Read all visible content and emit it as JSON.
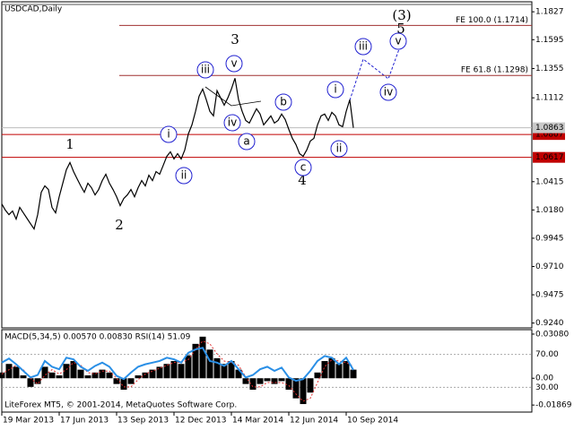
{
  "chart_data": [
    {
      "type": "line",
      "title": "USDCAD,Daily",
      "categories": [
        "19 Mar 2013",
        null,
        null,
        null,
        null,
        null,
        null,
        null,
        null,
        null,
        null,
        null,
        null,
        null,
        null,
        null,
        "17 Jun 2013",
        null,
        null,
        null,
        null,
        null,
        null,
        null,
        null,
        null,
        null,
        null,
        null,
        null,
        null,
        null,
        "13 Sep 2013",
        null,
        null,
        null,
        null,
        null,
        null,
        null,
        null,
        null,
        null,
        null,
        null,
        null,
        null,
        null,
        "12 Dec 2013",
        null,
        null,
        null,
        null,
        null,
        null,
        null,
        null,
        null,
        null,
        null,
        null,
        null,
        null,
        null,
        "14 Mar 2014",
        null,
        null,
        null,
        null,
        null,
        null,
        null,
        null,
        null,
        null,
        null,
        null,
        null,
        null,
        null,
        "12 Jun 2014",
        null,
        null,
        null,
        null,
        null,
        null,
        null,
        null,
        null,
        null,
        null,
        null,
        null,
        null,
        null,
        "10 Sep 2014",
        null,
        null
      ],
      "color": "#000000",
      "values": [
        1.023,
        1.0178,
        1.0141,
        1.0171,
        1.0104,
        1.0201,
        1.0156,
        1.0111,
        1.0066,
        1.0022,
        1.0141,
        1.0327,
        1.038,
        1.035,
        1.0201,
        1.0156,
        1.029,
        1.0402,
        1.0514,
        1.0574,
        1.0499,
        1.0439,
        1.038,
        1.0327,
        1.0402,
        1.0365,
        1.0305,
        1.035,
        1.0424,
        1.0477,
        1.0402,
        1.035,
        1.029,
        1.0216,
        1.0275,
        1.0305,
        1.035,
        1.029,
        1.0365,
        1.0424,
        1.038,
        1.0469,
        1.0424,
        1.0499,
        1.0477,
        1.0551,
        1.0626,
        1.0663,
        1.0604,
        1.0648,
        1.0604,
        1.0678,
        1.0812,
        1.0887,
        1.0999,
        1.1126,
        1.1185,
        1.1096,
        1.0999,
        1.0962,
        1.1171,
        1.1111,
        1.1051,
        1.1111,
        1.1185,
        1.1275,
        1.1096,
        1.0999,
        1.0924,
        1.0902,
        1.0962,
        1.1021,
        1.0977,
        1.0887,
        1.0924,
        1.0962,
        1.0902,
        1.0924,
        1.0977,
        1.0932,
        1.085,
        1.0775,
        1.0723,
        1.0648,
        1.0626,
        1.0678,
        1.0753,
        1.0775,
        1.0887,
        1.0962,
        1.0977,
        1.0924,
        1.0991,
        1.0962,
        1.0887,
        1.0872,
        1.0999,
        1.1096,
        1.0863
      ],
      "ylim": [
        0.92,
        1.191
      ],
      "yticks": [
        1.1827,
        1.1595,
        1.1355,
        1.1112,
        1.0415,
        {
          "value": 1.018,
          "label": "1.0180"
        },
        0.9945,
        {
          "value": 0.971,
          "label": "0.9710"
        },
        0.9475,
        {
          "value": 0.924,
          "label": "0.9240"
        }
      ],
      "current_price": 1.0863,
      "levels": [
        1.0807,
        1.0617
      ],
      "level_color": "#c00000",
      "fe_levels": [
        {
          "value": 1.1714,
          "label": "FE 100.0 (1.1714)"
        },
        {
          "value": 1.1298,
          "label": "FE 61.8 (1.1298)"
        }
      ],
      "annotations": [
        {
          "text": "(3)",
          "color": "#2a9a2a",
          "circled": false
        },
        {
          "text": "5",
          "color": "#a03020",
          "circled": false
        },
        {
          "text": "3",
          "color": "#a03020",
          "circled": false
        },
        {
          "text": "1",
          "color": "#a03020",
          "circled": false
        },
        {
          "text": "2",
          "color": "#a03020",
          "circled": false
        },
        {
          "text": "4",
          "color": "#a03020",
          "circled": false
        },
        {
          "text": "iii",
          "color": "#2020d0",
          "circled": true
        },
        {
          "text": "v",
          "color": "#2020d0",
          "circled": true
        },
        {
          "text": "i",
          "color": "#2020d0",
          "circled": true
        },
        {
          "text": "ii",
          "color": "#2020d0",
          "circled": true
        },
        {
          "text": "iv",
          "color": "#2020d0",
          "circled": true
        },
        {
          "text": "a",
          "color": "#2020d0",
          "circled": true
        },
        {
          "text": "b",
          "color": "#2020d0",
          "circled": true
        },
        {
          "text": "c",
          "color": "#2020d0",
          "circled": true
        },
        {
          "text": "i",
          "color": "#2020d0",
          "circled": true
        },
        {
          "text": "ii",
          "color": "#2020d0",
          "circled": true
        },
        {
          "text": "iii",
          "color": "#2020d0",
          "circled": true
        },
        {
          "text": "iv",
          "color": "#2020d0",
          "circled": true
        },
        {
          "text": "v",
          "color": "#2020d0",
          "circled": true
        }
      ]
    },
    {
      "type": "macd",
      "title": "MACD(5,34,5) 0.00570 0.00830 RSI(14) 51.09",
      "series": [
        {
          "color": "#000000",
          "values": [
            0.004,
            0.01,
            0.008,
            0.002,
            -0.006,
            -0.004,
            0.008,
            0.004,
            0.002,
            0.01,
            0.012,
            0.006,
            0.002,
            0.004,
            0.006,
            0.004,
            -0.004,
            -0.008,
            -0.004,
            0.002,
            0.004,
            0.006,
            0.008,
            0.01,
            0.012,
            0.01,
            0.016,
            0.024,
            0.029,
            0.02,
            0.014,
            0.01,
            0.012,
            0.006,
            -0.004,
            -0.008,
            -0.004,
            -0.002,
            -0.004,
            -0.002,
            -0.008,
            -0.014,
            -0.018,
            -0.01,
            0.004,
            0.012,
            0.014,
            0.01,
            0.012,
            0.006
          ]
        },
        {
          "color": "#e03030",
          "values": [
            0.003,
            0.006,
            0.009,
            0.006,
            0.0,
            -0.004,
            0.002,
            0.006,
            0.003,
            0.006,
            0.011,
            0.009,
            0.004,
            0.003,
            0.005,
            0.005,
            0.0,
            -0.006,
            -0.006,
            -0.001,
            0.003,
            0.005,
            0.007,
            0.009,
            0.011,
            0.011,
            0.013,
            0.02,
            0.026,
            0.024,
            0.017,
            0.012,
            0.011,
            0.009,
            0.001,
            -0.006,
            -0.006,
            -0.003,
            -0.003,
            -0.003,
            -0.005,
            -0.011,
            -0.016,
            -0.014,
            -0.003,
            0.008,
            0.013,
            0.012,
            0.011,
            0.0083
          ]
        },
        {
          "color": "#2a8fe6",
          "axis": "y2",
          "values": [
            60,
            65,
            58,
            50,
            42,
            45,
            62,
            55,
            52,
            66,
            64,
            55,
            50,
            56,
            60,
            55,
            44,
            40,
            48,
            55,
            58,
            60,
            62,
            66,
            64,
            60,
            72,
            76,
            78,
            62,
            60,
            56,
            62,
            52,
            42,
            45,
            52,
            55,
            50,
            54,
            42,
            38,
            40,
            50,
            62,
            68,
            66,
            58,
            66,
            51.09
          ]
        }
      ],
      "ylim": [
        -0.0236,
        0.0339
      ],
      "yticks": [
        {
          "value": 0.0308,
          "label": "0.03080"
        },
        {
          "value": 0,
          "label": "0.00"
        },
        {
          "value": -0.01869,
          "label": "-0.01869"
        }
      ],
      "y2lim": [
        0,
        100
      ],
      "y2ticks": [
        {
          "value": 70,
          "label": "70.00"
        },
        {
          "value": 30,
          "label": "30.00"
        }
      ]
    }
  ],
  "footer": "LiteForex MT5, © 2001-2014, MetaQuotes Software Corp."
}
